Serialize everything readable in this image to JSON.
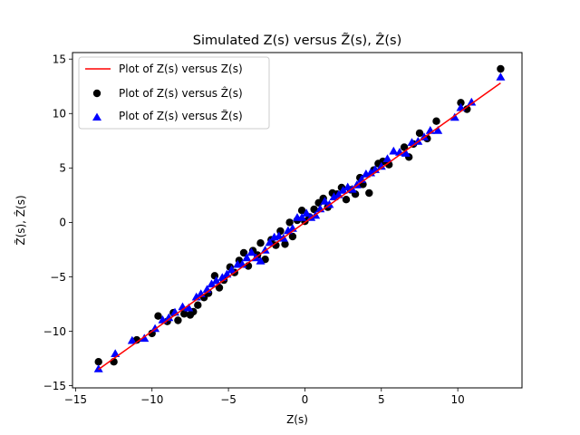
{
  "chart_data": {
    "type": "scatter",
    "title": "Simulated Z(s) versus Z̃(s), Ẑ(s)",
    "xlabel": "Z(s)",
    "ylabel": "Z̃(s), Ẑ(s)",
    "xlim": [
      -15.2,
      14.2
    ],
    "ylim": [
      -15.2,
      15.6
    ],
    "xticks": [
      -15,
      -10,
      -5,
      0,
      5,
      10
    ],
    "yticks": [
      -15,
      -10,
      -5,
      0,
      5,
      10,
      15
    ],
    "xtick_labels": [
      "−15",
      "−10",
      "−5",
      "0",
      "5",
      "10"
    ],
    "ytick_labels": [
      "−15",
      "−10",
      "−5",
      "0",
      "5",
      "10",
      "15"
    ],
    "grid": false,
    "legend_position": "top-left",
    "series": [
      {
        "name": "Plot of Z(s) versus Z(s)",
        "kind": "line",
        "color": "#ff0000",
        "x": [
          -13.5,
          12.8
        ],
        "y": [
          -13.5,
          12.8
        ]
      },
      {
        "name": "Plot of Z(s) versus Ẑ(s)",
        "kind": "scatter",
        "marker": "circle",
        "color": "#000000",
        "x": [
          -13.5,
          -12.5,
          -11.0,
          -10.0,
          -9.6,
          -9.0,
          -8.6,
          -8.3,
          -7.9,
          -7.5,
          -7.3,
          -7.0,
          -6.6,
          -6.3,
          -5.9,
          -5.6,
          -5.3,
          -4.9,
          -4.6,
          -4.3,
          -4.0,
          -3.7,
          -3.4,
          -3.1,
          -2.9,
          -2.6,
          -2.2,
          -1.9,
          -1.6,
          -1.3,
          -1.0,
          -0.8,
          -0.5,
          -0.2,
          0.0,
          0.3,
          0.6,
          0.9,
          1.2,
          1.5,
          1.8,
          2.1,
          2.4,
          2.7,
          3.0,
          3.3,
          3.6,
          3.8,
          4.2,
          4.5,
          4.8,
          5.1,
          5.5,
          6.5,
          6.8,
          7.1,
          7.5,
          8.0,
          8.6,
          10.2,
          10.6,
          12.8
        ],
        "y": [
          -12.8,
          -12.8,
          -10.8,
          -10.2,
          -8.6,
          -9.1,
          -8.3,
          -9.0,
          -8.4,
          -8.5,
          -8.2,
          -7.6,
          -6.9,
          -6.5,
          -4.9,
          -6.0,
          -5.3,
          -4.1,
          -4.6,
          -3.5,
          -2.8,
          -4.0,
          -2.6,
          -3.0,
          -1.9,
          -3.4,
          -1.6,
          -2.1,
          -0.8,
          -2.0,
          0.0,
          -1.3,
          0.2,
          1.1,
          0.1,
          0.5,
          1.2,
          1.8,
          2.2,
          1.4,
          2.7,
          2.6,
          3.2,
          2.1,
          3.0,
          2.6,
          4.1,
          3.5,
          2.7,
          4.8,
          5.4,
          5.6,
          5.3,
          6.9,
          6.0,
          7.2,
          8.2,
          7.7,
          9.3,
          11.0,
          10.4,
          14.1
        ]
      },
      {
        "name": "Plot of Z(s) versus Z̃(s)",
        "kind": "scatter",
        "marker": "triangle",
        "color": "#0000ff",
        "x": [
          -13.5,
          -12.4,
          -11.3,
          -10.5,
          -9.8,
          -9.3,
          -8.9,
          -8.5,
          -8.0,
          -7.6,
          -7.1,
          -6.8,
          -6.4,
          -6.1,
          -5.8,
          -5.4,
          -5.1,
          -4.8,
          -4.4,
          -4.1,
          -3.8,
          -3.5,
          -3.2,
          -2.9,
          -2.6,
          -2.3,
          -2.0,
          -1.7,
          -1.4,
          -1.1,
          -0.8,
          -0.5,
          -0.2,
          0.1,
          0.4,
          0.7,
          1.0,
          1.3,
          1.6,
          1.9,
          2.2,
          2.5,
          2.8,
          3.1,
          3.4,
          3.7,
          4.0,
          4.3,
          4.6,
          5.0,
          5.4,
          5.8,
          6.2,
          6.6,
          7.0,
          7.4,
          7.8,
          8.2,
          8.7,
          9.8,
          10.2,
          10.9,
          12.8
        ],
        "y": [
          -13.5,
          -12.1,
          -10.9,
          -10.7,
          -9.8,
          -9.0,
          -8.8,
          -8.3,
          -7.8,
          -7.9,
          -6.9,
          -6.6,
          -6.2,
          -5.7,
          -5.4,
          -5.1,
          -4.8,
          -4.4,
          -3.9,
          -3.9,
          -3.3,
          -2.8,
          -3.3,
          -3.6,
          -2.6,
          -1.9,
          -1.4,
          -1.3,
          -1.5,
          -0.8,
          -0.6,
          0.4,
          0.4,
          0.8,
          0.4,
          0.6,
          1.2,
          1.9,
          1.6,
          2.3,
          2.5,
          2.9,
          3.2,
          3.0,
          3.4,
          3.9,
          4.4,
          4.5,
          4.8,
          5.1,
          5.8,
          6.5,
          6.4,
          6.3,
          7.3,
          7.4,
          7.8,
          8.4,
          8.4,
          9.6,
          10.5,
          11.0,
          13.3
        ]
      }
    ]
  }
}
